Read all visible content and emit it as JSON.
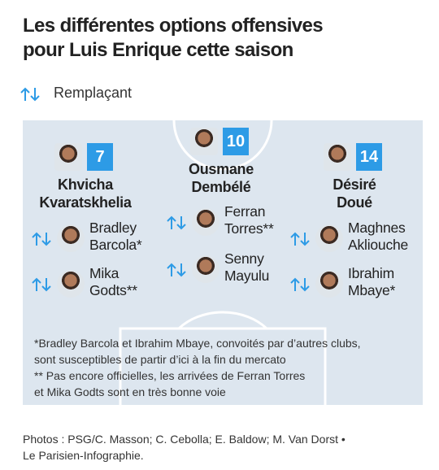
{
  "header": {
    "title_lines": [
      "Les différentes options offensives",
      "pour Luis Enrique cette saison"
    ]
  },
  "legend": {
    "label": "Remplaçant"
  },
  "columns": [
    {
      "starter": {
        "number": 7,
        "name_lines": [
          "Khvicha",
          "Kvaratskhelia"
        ]
      },
      "substitutes": [
        {
          "name_lines": [
            "Bradley",
            "Barcola*"
          ]
        },
        {
          "name_lines": [
            "Mika",
            "Godts**"
          ]
        }
      ]
    },
    {
      "starter": {
        "number": 10,
        "name_lines": [
          "Ousmane",
          "Dembélé"
        ]
      },
      "substitutes": [
        {
          "name_lines": [
            "Ferran",
            "Torres**"
          ]
        },
        {
          "name_lines": [
            "Senny",
            "Mayulu"
          ]
        }
      ]
    },
    {
      "starter": {
        "number": 14,
        "name_lines": [
          "Désiré",
          "Doué"
        ]
      },
      "substitutes": [
        {
          "name_lines": [
            "Maghnes",
            "Akliouche"
          ]
        },
        {
          "name_lines": [
            "Ibrahim",
            "Mbaye*"
          ]
        }
      ]
    }
  ],
  "footnotes": [
    "*Bradley Barcola et Ibrahim Mbaye, convoités par d’autres clubs,",
    "sont susceptibles de partir d’ici à la fin du mercato",
    "** Pas encore officielles, les arrivées de Ferran Torres",
    "et Mika Godts sont en très bonne voie"
  ],
  "credits": [
    "Photos : PSG/C. Masson; C. Cebolla; E. Baldow; M. Van Dorst •",
    "Le Parisien-Infographie."
  ]
}
